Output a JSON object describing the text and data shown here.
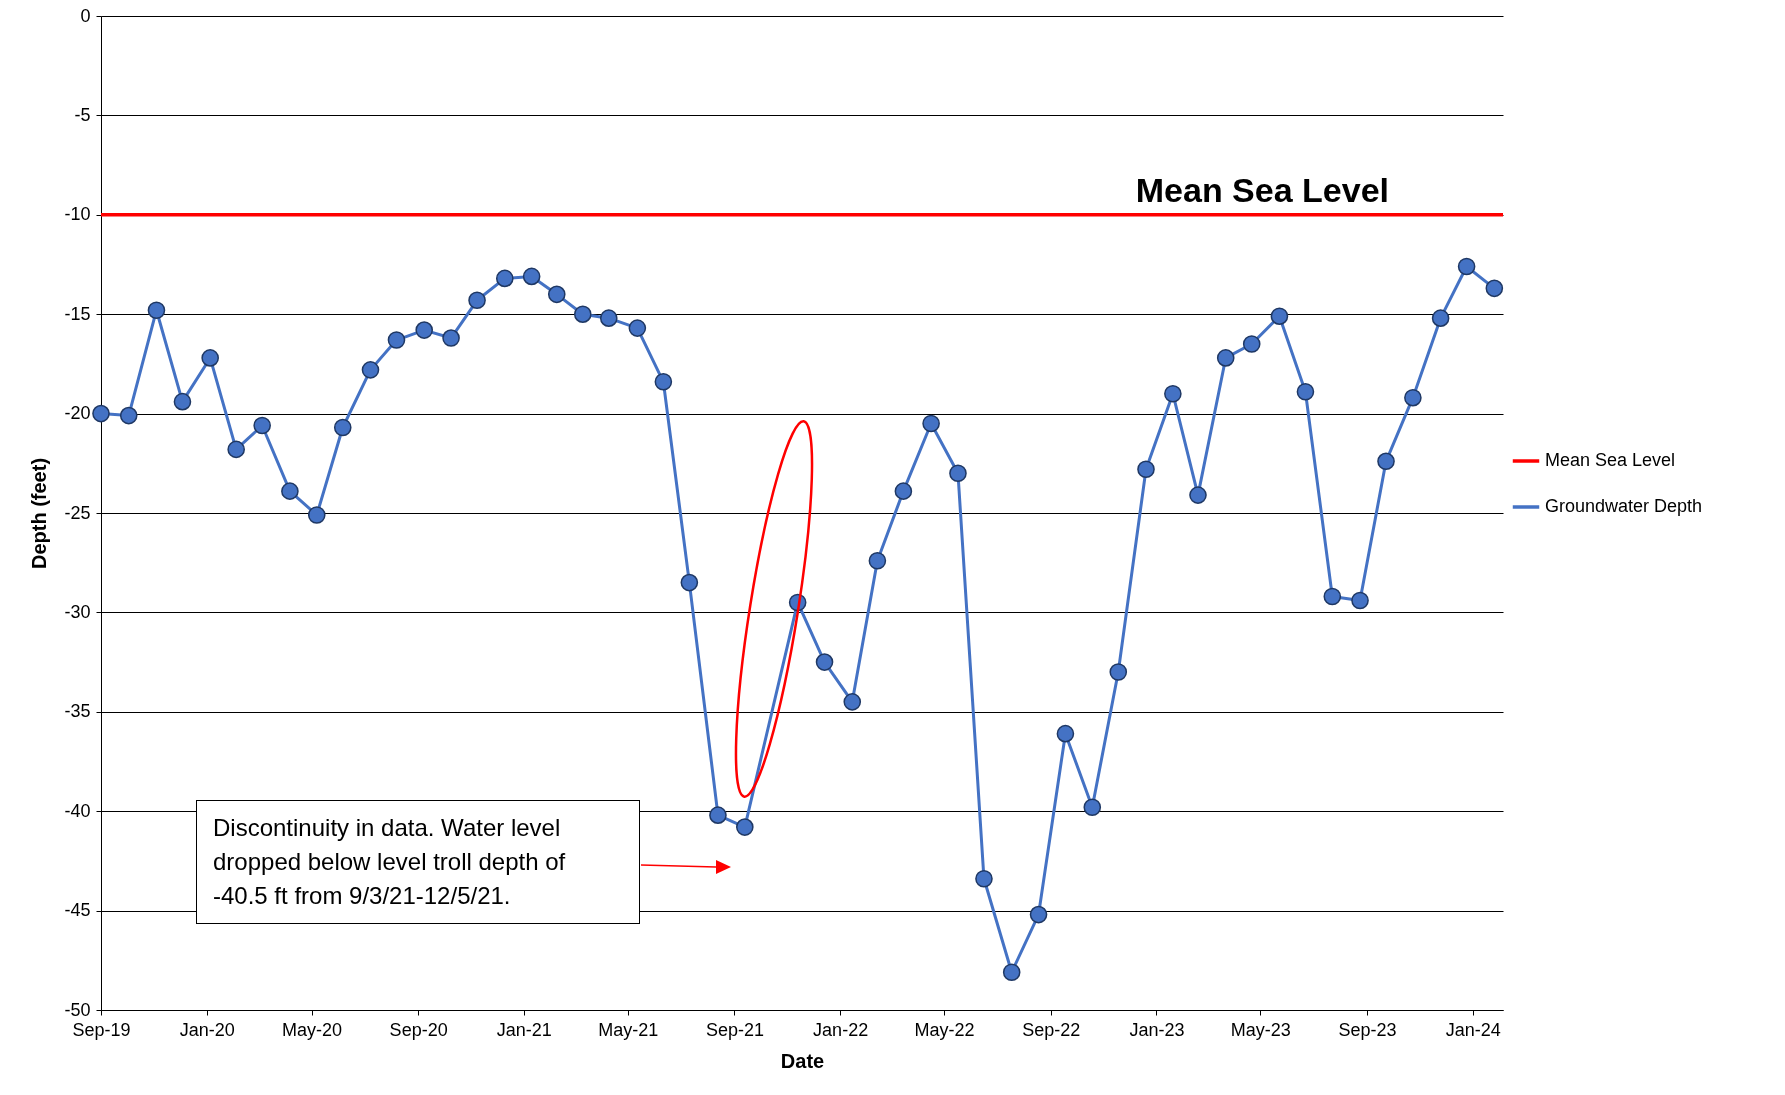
{
  "chart_data": {
    "type": "line",
    "xlabel": "Date",
    "ylabel": "Depth (feet)",
    "xlim": [
      "2019-09-01",
      "2024-02-05"
    ],
    "xticks": [
      {
        "value": "2019-09-01",
        "label": "Sep-19"
      },
      {
        "value": "2020-01-01",
        "label": "Jan-20"
      },
      {
        "value": "2020-05-01",
        "label": "May-20"
      },
      {
        "value": "2020-09-01",
        "label": "Sep-20"
      },
      {
        "value": "2021-01-01",
        "label": "Jan-21"
      },
      {
        "value": "2021-05-01",
        "label": "May-21"
      },
      {
        "value": "2021-09-01",
        "label": "Sep-21"
      },
      {
        "value": "2022-01-01",
        "label": "Jan-22"
      },
      {
        "value": "2022-05-01",
        "label": "May-22"
      },
      {
        "value": "2022-09-01",
        "label": "Sep-22"
      },
      {
        "value": "2023-01-01",
        "label": "Jan-23"
      },
      {
        "value": "2023-05-01",
        "label": "May-23"
      },
      {
        "value": "2023-09-01",
        "label": "Sep-23"
      },
      {
        "value": "2024-01-01",
        "label": "Jan-24"
      }
    ],
    "ylim": [
      -50,
      0
    ],
    "yticks": [
      -50,
      -45,
      -40,
      -35,
      -30,
      -25,
      -20,
      -15,
      -10,
      -5,
      0
    ],
    "grid": "y",
    "legend": "right",
    "marker": "circle",
    "line_style": "solid",
    "x": [
      "2019-09-01",
      "2019-10-03",
      "2019-11-04",
      "2019-12-04",
      "2020-01-05",
      "2020-02-04",
      "2020-03-05",
      "2020-04-06",
      "2020-05-07",
      "2020-06-06",
      "2020-07-08",
      "2020-08-07",
      "2020-09-08",
      "2020-10-09",
      "2020-11-08",
      "2020-12-10",
      "2021-01-10",
      "2021-02-08",
      "2021-03-10",
      "2021-04-09",
      "2021-05-12",
      "2021-06-11",
      "2021-07-11",
      "2021-08-13",
      "2021-09-13",
      "2021-11-13",
      "2021-12-14",
      "2022-01-15",
      "2022-02-13",
      "2022-03-15",
      "2022-04-16",
      "2022-05-17",
      "2022-06-16",
      "2022-07-18",
      "2022-08-18",
      "2022-09-18",
      "2022-10-19",
      "2022-11-18",
      "2022-12-20",
      "2023-01-20",
      "2023-02-18",
      "2023-03-22",
      "2023-04-21",
      "2023-05-23",
      "2023-06-22",
      "2023-07-23",
      "2023-08-24",
      "2023-09-23",
      "2023-10-24",
      "2023-11-25",
      "2023-12-25",
      "2024-01-26"
    ],
    "series": [
      {
        "name": "Groundwater Depth",
        "color": "#4472c4",
        "values": [
          -20.0,
          -20.1,
          -14.8,
          -19.4,
          -17.2,
          -21.8,
          -20.6,
          -23.9,
          -25.1,
          -20.7,
          -17.8,
          -16.3,
          -15.8,
          -16.2,
          -14.3,
          -13.2,
          -13.1,
          -14.0,
          -15.0,
          -15.2,
          -15.7,
          -18.4,
          -28.5,
          -40.2,
          -40.8,
          -29.5,
          -32.5,
          -34.5,
          -27.4,
          -23.9,
          -20.5,
          -23.0,
          -43.4,
          -48.1,
          -45.2,
          -36.1,
          -39.8,
          -33.0,
          -22.8,
          -19.0,
          -24.1,
          -17.2,
          -16.5,
          -15.1,
          -18.9,
          -29.2,
          -29.4,
          -22.4,
          -19.2,
          -15.2,
          -12.6,
          -13.7
        ]
      }
    ],
    "ref_lines": [
      {
        "axis": "y",
        "value": -10,
        "label": "Mean Sea Level",
        "color": "#ff0000",
        "line_style": "solid"
      }
    ],
    "annotations": [
      "Discontinuity in data. Water level dropped below level troll depth of -40.5 ft from 9/3/21-12/5/21."
    ]
  }
}
